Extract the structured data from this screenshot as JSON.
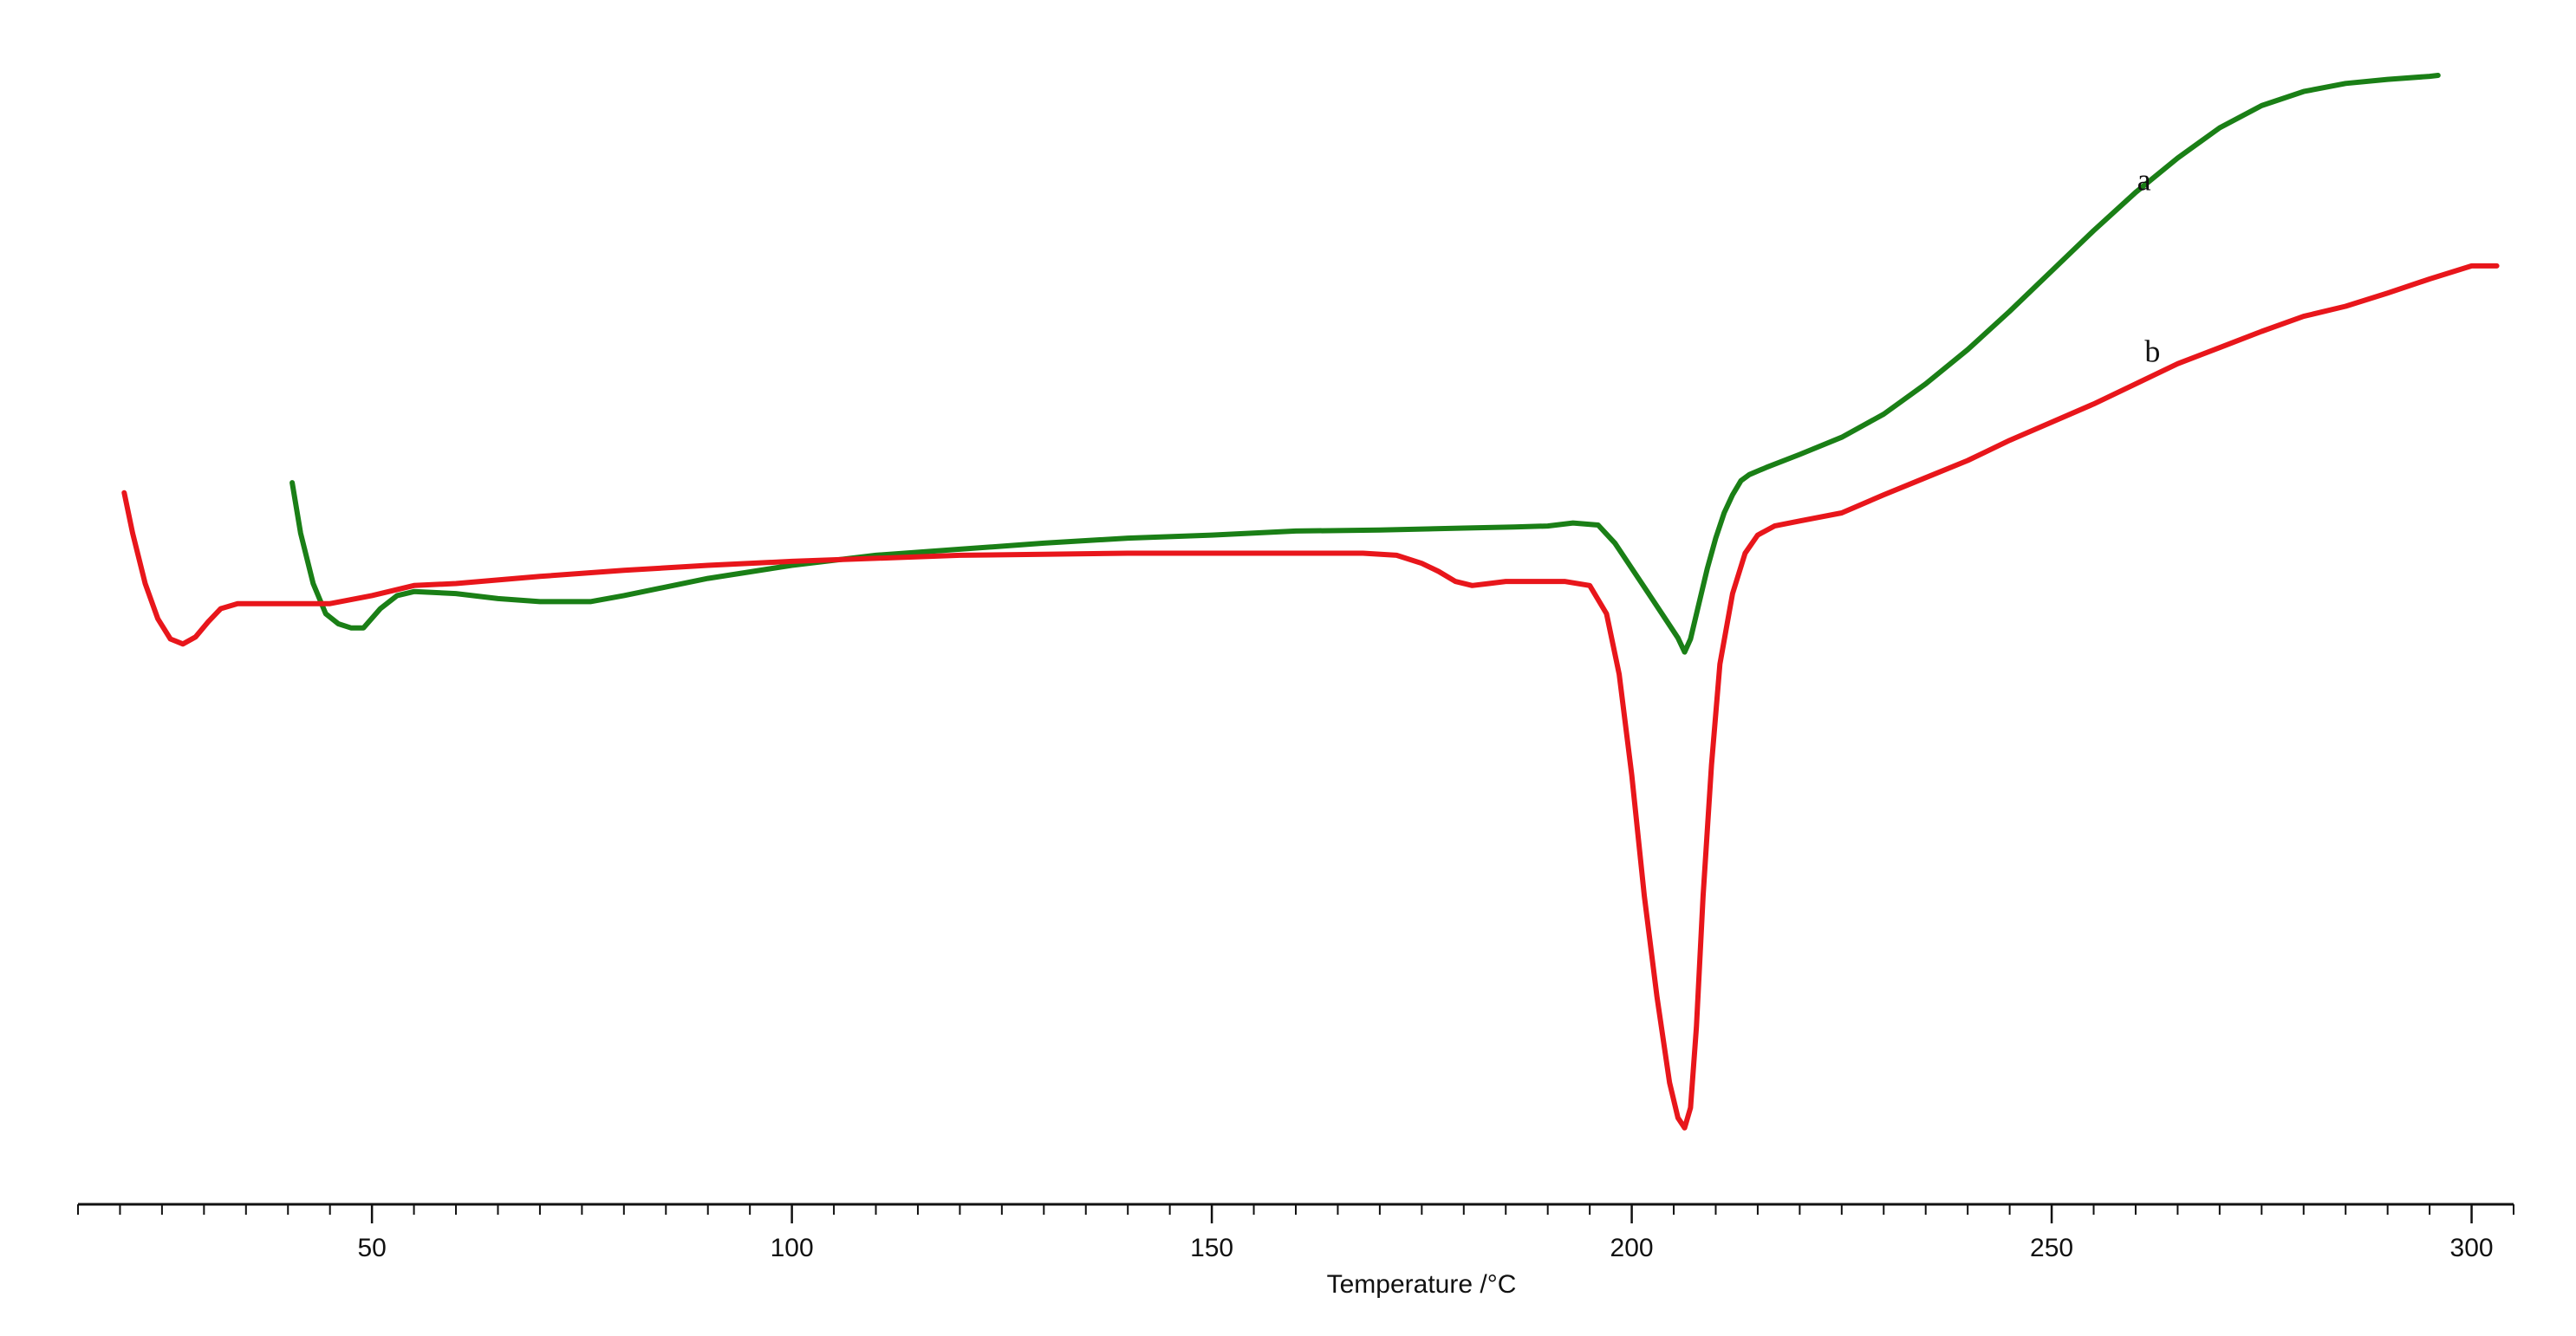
{
  "chart_data": {
    "type": "line",
    "title": "",
    "xlabel": "Temperature /°C",
    "ylabel": "",
    "xlim": [
      15,
      305
    ],
    "ylim": [
      -0.5,
      10.5
    ],
    "x_ticks": [
      50,
      100,
      150,
      200,
      250,
      300
    ],
    "x_minor_step": 5,
    "show_y_axis": false,
    "grid": false,
    "legend": "none",
    "series": [
      {
        "name": "a",
        "color": "#1a7f16",
        "label_at": [
          261,
          9.3
        ],
        "x": [
          40.5,
          41.5,
          43,
          44.5,
          46,
          47.5,
          49,
          51,
          53,
          55,
          60,
          65,
          70,
          76,
          80,
          90,
          100,
          110,
          120,
          130,
          140,
          150,
          160,
          170,
          180,
          186,
          190,
          193,
          196,
          198,
          200,
          202,
          204,
          205.5,
          206.3,
          207,
          208,
          209,
          210,
          211,
          212,
          213,
          214,
          216,
          220,
          225,
          230,
          235,
          240,
          245,
          250,
          255,
          260,
          265,
          270,
          275,
          280,
          285,
          290,
          295,
          296
        ],
        "y": [
          6.4,
          5.9,
          5.4,
          5.1,
          5.0,
          4.96,
          4.96,
          5.15,
          5.28,
          5.32,
          5.3,
          5.25,
          5.22,
          5.22,
          5.28,
          5.45,
          5.58,
          5.68,
          5.74,
          5.8,
          5.85,
          5.88,
          5.92,
          5.93,
          5.95,
          5.96,
          5.97,
          6.0,
          5.98,
          5.8,
          5.55,
          5.3,
          5.05,
          4.86,
          4.72,
          4.85,
          5.2,
          5.55,
          5.85,
          6.1,
          6.28,
          6.42,
          6.48,
          6.55,
          6.68,
          6.85,
          7.08,
          7.38,
          7.72,
          8.1,
          8.5,
          8.9,
          9.28,
          9.62,
          9.92,
          10.14,
          10.28,
          10.36,
          10.4,
          10.43,
          10.44
        ]
      },
      {
        "name": "b",
        "color": "#e8161b",
        "label_at": [
          262,
          7.6
        ],
        "x": [
          20.5,
          21.5,
          23,
          24.5,
          26,
          27.5,
          29,
          30.5,
          32,
          34,
          36,
          40,
          45,
          50,
          55,
          60,
          70,
          80,
          90,
          100,
          110,
          120,
          130,
          140,
          150,
          160,
          168,
          172,
          175,
          177,
          179,
          181,
          183,
          185,
          188,
          192,
          195,
          197,
          198.5,
          200,
          201.5,
          203,
          204.5,
          205.5,
          206.3,
          207,
          207.7,
          208.5,
          209.5,
          210.5,
          212,
          213.5,
          215,
          217,
          220,
          225,
          230,
          235,
          240,
          245,
          250,
          255,
          260,
          265,
          270,
          275,
          280,
          285,
          290,
          295,
          300,
          303
        ],
        "y": [
          6.3,
          5.9,
          5.4,
          5.05,
          4.85,
          4.8,
          4.87,
          5.02,
          5.15,
          5.2,
          5.2,
          5.2,
          5.2,
          5.28,
          5.38,
          5.4,
          5.47,
          5.53,
          5.58,
          5.62,
          5.65,
          5.68,
          5.69,
          5.7,
          5.7,
          5.7,
          5.7,
          5.68,
          5.6,
          5.52,
          5.42,
          5.38,
          5.4,
          5.42,
          5.42,
          5.42,
          5.38,
          5.1,
          4.5,
          3.5,
          2.3,
          1.3,
          0.45,
          0.1,
          0.0,
          0.2,
          1.0,
          2.3,
          3.6,
          4.6,
          5.3,
          5.7,
          5.88,
          5.97,
          6.02,
          6.1,
          6.28,
          6.45,
          6.62,
          6.82,
          7.0,
          7.18,
          7.38,
          7.58,
          7.74,
          7.9,
          8.05,
          8.15,
          8.28,
          8.42,
          8.55,
          8.55
        ]
      }
    ]
  }
}
